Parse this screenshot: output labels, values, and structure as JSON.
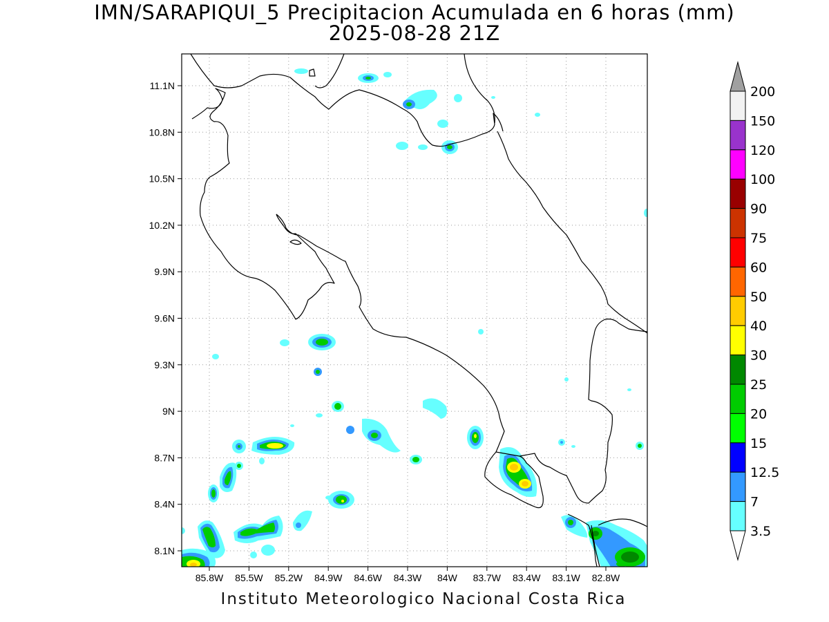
{
  "title_line1": "IMN/SARAPIQUI_5 Precipitacion Acumulada en 6 horas (mm)",
  "title_line2": "2025-08-28 21Z",
  "footer": "Instituto Meteorologico Nacional Costa Rica",
  "map": {
    "lon_range": [
      -86.05,
      -82.6
    ],
    "lat_range": [
      8.0,
      11.3
    ],
    "y_ticks": [
      "11.1N",
      "10.8N",
      "10.5N",
      "10.2N",
      "9.9N",
      "9.6N",
      "9.3N",
      "9N",
      "8.7N",
      "8.4N",
      "8.1N"
    ],
    "x_ticks": [
      "85.8W",
      "85.5W",
      "85.2W",
      "84.9W",
      "84.6W",
      "84.3W",
      "84W",
      "83.7W",
      "83.4W",
      "83.1W",
      "82.8W"
    ],
    "grid": "dotted",
    "background": "#ffffff",
    "coastline_color": "#000000"
  },
  "colorbar": {
    "labels": [
      "3.5",
      "7",
      "12.5",
      "15",
      "20",
      "25",
      "30",
      "40",
      "50",
      "60",
      "75",
      "90",
      "100",
      "120",
      "150",
      "200"
    ],
    "colors": [
      "#ffffff",
      "#66ffff",
      "#3399ff",
      "#0000ff",
      "#00ff00",
      "#00cc00",
      "#008800",
      "#ffff00",
      "#ffcc00",
      "#ff6600",
      "#ff0000",
      "#cc3300",
      "#990000",
      "#ff00ff",
      "#9933cc",
      "#f2f2f2"
    ],
    "over_color": "#a0a0a0",
    "under_color": "#ffffff"
  }
}
